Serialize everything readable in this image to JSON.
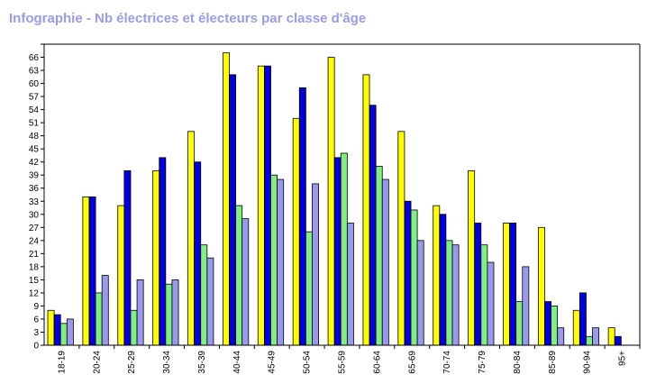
{
  "chart_data": {
    "type": "bar",
    "title": "Infographie - Nb électrices et électeurs par classe d'âge",
    "xlabel": "",
    "ylabel": "",
    "ylim": [
      0,
      69
    ],
    "ytick_step": 3,
    "grid": false,
    "legend": "none",
    "categories": [
      "18-19",
      "20-24",
      "25-29",
      "30-34",
      "35-39",
      "40-44",
      "45-49",
      "50-54",
      "55-59",
      "60-64",
      "65-69",
      "70-74",
      "75-79",
      "80-84",
      "85-89",
      "90-94",
      "95+"
    ],
    "series": [
      {
        "color": "#ffff00",
        "values": [
          8,
          34,
          32,
          40,
          49,
          67,
          64,
          52,
          66,
          62,
          49,
          32,
          40,
          28,
          27,
          8,
          4
        ]
      },
      {
        "color": "#0000e0",
        "values": [
          7,
          34,
          40,
          43,
          42,
          62,
          64,
          59,
          43,
          55,
          33,
          30,
          28,
          28,
          10,
          12,
          2
        ]
      },
      {
        "color": "#80ee80",
        "values": [
          5,
          12,
          8,
          14,
          23,
          32,
          39,
          26,
          44,
          41,
          31,
          24,
          23,
          10,
          9,
          2,
          0
        ]
      },
      {
        "color": "#9999ee",
        "values": [
          6,
          16,
          15,
          15,
          20,
          29,
          38,
          37,
          28,
          38,
          24,
          23,
          19,
          18,
          4,
          4,
          0
        ]
      }
    ]
  }
}
